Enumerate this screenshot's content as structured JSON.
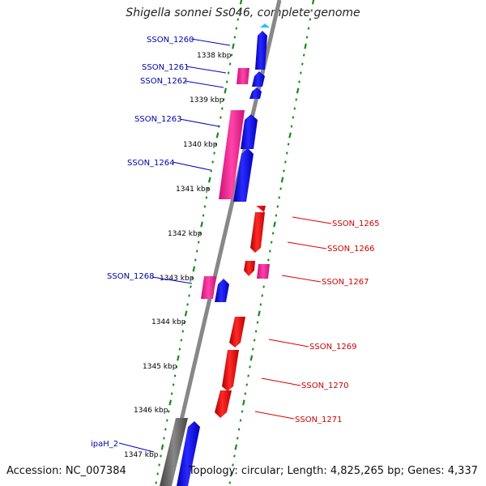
{
  "header": {
    "title": "Shigella sonnei Ss046, complete genome"
  },
  "footer": {
    "accession": "Accession: NC_007384",
    "topology": "Topology: circular; Length: 4,825,265 bp; Genes: 4,337"
  },
  "map": {
    "kbp_ticks": [
      "1338 kbp",
      "1339 kbp",
      "1340 kbp",
      "1341 kbp",
      "1342 kbp",
      "1343 kbp",
      "1344 kbp",
      "1345 kbp",
      "1346 kbp",
      "1347 kbp"
    ],
    "colors": {
      "forward_gene": "#0000ee",
      "reverse_gene": "#ee0000",
      "forward_label": "#0000aa",
      "reverse_label": "#cc0000",
      "feature_magenta": "#ee2299",
      "feature_gray": "#666666",
      "backbone": "#888888",
      "ticks": "#1a8a1a"
    },
    "left_labels": [
      "SSON_1260",
      "SSON_1261",
      "SSON_1262",
      "SSON_1263",
      "SSON_1264",
      "SSON_1268",
      "ipaH_2"
    ],
    "right_labels": [
      "SSON_1265",
      "SSON_1266",
      "SSON_1267",
      "SSON_1269",
      "SSON_1270",
      "SSON_1271"
    ]
  }
}
